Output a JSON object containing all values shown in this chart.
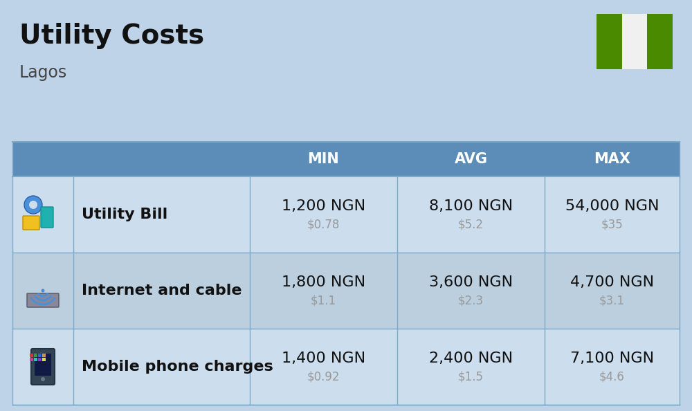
{
  "title": "Utility Costs",
  "subtitle": "Lagos",
  "background_color": "#bed3e8",
  "header_bg_color": "#5b8db8",
  "header_text_color": "#ffffff",
  "row_bg_color_1": "#ccdded",
  "row_bg_color_2": "#bccfdf",
  "col_sep_color": "#5b8db8",
  "flag_green": "#4a8a00",
  "flag_white": "#f0f0f0",
  "headers": [
    "MIN",
    "AVG",
    "MAX"
  ],
  "rows": [
    {
      "label": "Utility Bill",
      "min_ngn": "1,200 NGN",
      "min_usd": "$0.78",
      "avg_ngn": "8,100 NGN",
      "avg_usd": "$5.2",
      "max_ngn": "54,000 NGN",
      "max_usd": "$35",
      "icon": "utility"
    },
    {
      "label": "Internet and cable",
      "min_ngn": "1,800 NGN",
      "min_usd": "$1.1",
      "avg_ngn": "3,600 NGN",
      "avg_usd": "$2.3",
      "max_ngn": "4,700 NGN",
      "max_usd": "$3.1",
      "icon": "internet"
    },
    {
      "label": "Mobile phone charges",
      "min_ngn": "1,400 NGN",
      "min_usd": "$0.92",
      "avg_ngn": "2,400 NGN",
      "avg_usd": "$1.5",
      "max_ngn": "7,100 NGN",
      "max_usd": "$4.6",
      "icon": "mobile"
    }
  ],
  "ngn_fontsize": 16,
  "usd_fontsize": 12,
  "label_fontsize": 16,
  "header_fontsize": 15,
  "title_fontsize": 28,
  "subtitle_fontsize": 17
}
